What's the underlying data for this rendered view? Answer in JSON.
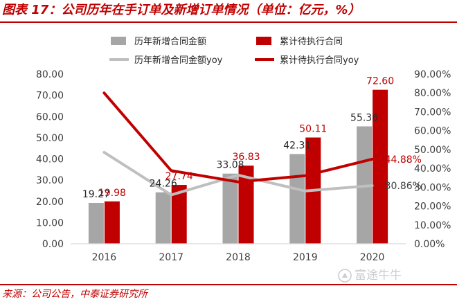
{
  "header": {
    "title": "图表 17：公司历年在手订单及新增订单情况（单位：亿元，%）"
  },
  "footer": {
    "source": "来源：公司公告，中泰证券研究所",
    "watermark": "富途牛牛"
  },
  "colors": {
    "title_red": "#c00000",
    "bar_gray": "#a6a6a6",
    "bar_red": "#c00000",
    "line_gray": "#bfbfbf",
    "line_red": "#c00000",
    "label_red": "#c00000",
    "text_dark": "#404040"
  },
  "chart_data": {
    "type": "bar",
    "categories": [
      "2016",
      "2017",
      "2018",
      "2019",
      "2020"
    ],
    "series": [
      {
        "name": "历年新增合同金额",
        "kind": "bar",
        "axis": "left",
        "color": "#a6a6a6",
        "values": [
          19.27,
          24.26,
          33.08,
          42.31,
          55.36
        ],
        "labels": [
          "19.27",
          "24.26",
          "33.08",
          "42.31",
          "55.36"
        ]
      },
      {
        "name": "累计待执行合同",
        "kind": "bar",
        "axis": "left",
        "color": "#c00000",
        "values": [
          19.98,
          27.74,
          36.83,
          50.11,
          72.6
        ],
        "labels": [
          "19.98",
          "27.74",
          "36.83",
          "50.11",
          "72.60"
        ]
      },
      {
        "name": "历年新增合同金额yoy",
        "kind": "line",
        "axis": "right",
        "color": "#bfbfbf",
        "values": [
          48.5,
          25.9,
          36.4,
          28.0,
          30.86
        ],
        "labels": [
          "",
          "",
          "",
          "",
          "30.86%"
        ]
      },
      {
        "name": "累计待执行合同yoy",
        "kind": "line",
        "axis": "right",
        "color": "#c00000",
        "values": [
          80.0,
          38.8,
          32.8,
          36.1,
          44.88
        ],
        "labels": [
          "",
          "",
          "",
          "",
          "44.88%"
        ]
      }
    ],
    "y_left": {
      "min": 0,
      "max": 80,
      "step": 10,
      "tick_labels": [
        "0.00",
        "10.00",
        "20.00",
        "30.00",
        "40.00",
        "50.00",
        "60.00",
        "70.00",
        "80.00"
      ]
    },
    "y_right": {
      "min": 0,
      "max": 90,
      "step": 10,
      "tick_labels": [
        "0.00%",
        "10.00%",
        "20.00%",
        "30.00%",
        "40.00%",
        "50.00%",
        "60.00%",
        "70.00%",
        "80.00%",
        "90.00%"
      ]
    },
    "legend_position": "top",
    "grid": false
  }
}
